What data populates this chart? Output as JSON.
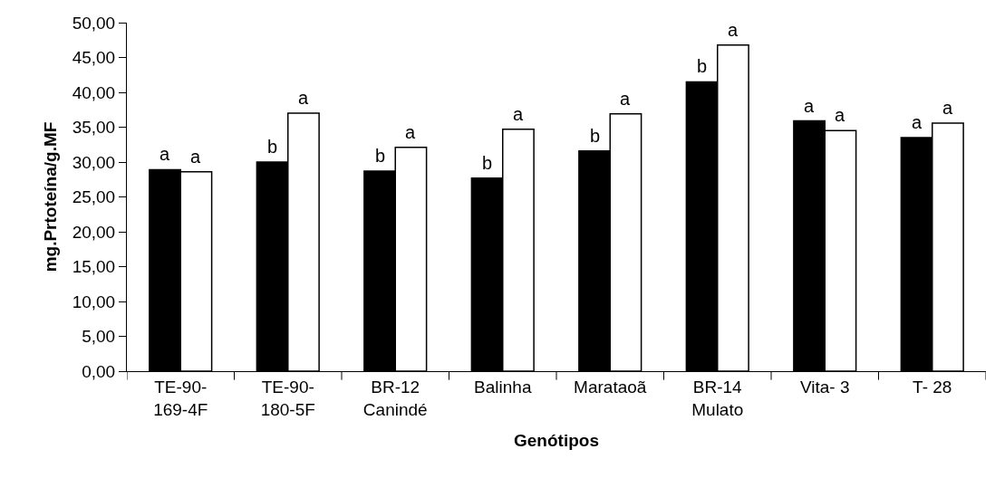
{
  "chart_data": {
    "type": "bar",
    "xlabel": "Genótipos",
    "ylabel": "mg.Prtoteína/g.MF",
    "categories": [
      "TE-90-169-4F",
      "TE-90-180-5F",
      "BR-12 Canindé",
      "Balinha",
      "Marataoã",
      "BR-14 Mulato",
      "Vita- 3",
      "T- 28"
    ],
    "series": [
      {
        "color": "#000000",
        "values": [
          28.9,
          30.0,
          28.7,
          27.7,
          31.6,
          41.5,
          35.9,
          33.5
        ]
      },
      {
        "color": "#ffffff",
        "values": [
          28.6,
          37.0,
          32.1,
          34.7,
          36.9,
          46.8,
          34.5,
          35.6
        ]
      }
    ],
    "ylim": [
      0,
      50
    ],
    "yticks": [
      {
        "value": 0,
        "label": "0,00"
      },
      {
        "value": 5,
        "label": "5,00"
      },
      {
        "value": 10,
        "label": "10,00"
      },
      {
        "value": 15,
        "label": "15,00"
      },
      {
        "value": 20,
        "label": "20,00"
      },
      {
        "value": 25,
        "label": "25,00"
      },
      {
        "value": 30,
        "label": "30,00"
      },
      {
        "value": 35,
        "label": "35,00"
      },
      {
        "value": 40,
        "label": "40,00"
      },
      {
        "value": 45,
        "label": "45,00"
      },
      {
        "value": 50,
        "label": "50,00"
      }
    ],
    "grid": false,
    "annotations": [
      {
        "text": "a",
        "x": "TE-90-169-4F",
        "y": 28.9
      },
      {
        "text": "a",
        "x": "TE-90-169-4F",
        "y": 28.6
      },
      {
        "text": "b",
        "x": "TE-90-180-5F",
        "y": 30.0
      },
      {
        "text": "a",
        "x": "TE-90-180-5F",
        "y": 37.0
      },
      {
        "text": "b",
        "x": "BR-12 Canindé",
        "y": 28.7
      },
      {
        "text": "a",
        "x": "BR-12 Canindé",
        "y": 32.1
      },
      {
        "text": "b",
        "x": "Balinha",
        "y": 27.7
      },
      {
        "text": "a",
        "x": "Balinha",
        "y": 34.7
      },
      {
        "text": "b",
        "x": "Marataoã",
        "y": 31.6
      },
      {
        "text": "a",
        "x": "Marataoã",
        "y": 36.9
      },
      {
        "text": "b",
        "x": "BR-14 Mulato",
        "y": 41.5
      },
      {
        "text": "a",
        "x": "BR-14 Mulato",
        "y": 46.8
      },
      {
        "text": "a",
        "x": "Vita- 3",
        "y": 35.9
      },
      {
        "text": "a",
        "x": "Vita- 3",
        "y": 34.5
      },
      {
        "text": "a",
        "x": "T- 28",
        "y": 33.5
      },
      {
        "text": "a",
        "x": "T- 28",
        "y": 35.6
      }
    ]
  }
}
